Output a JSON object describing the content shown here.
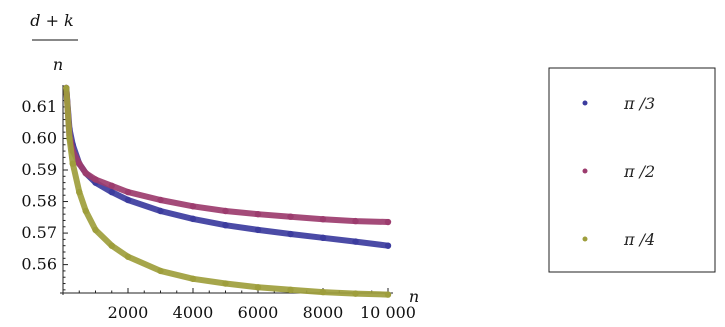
{
  "chart_data": {
    "type": "scatter",
    "ylabel": {
      "numerator": "d + k",
      "denominator": "n"
    },
    "xlabel": "n",
    "xlim": [
      0,
      10000
    ],
    "ylim": [
      0.551,
      0.616
    ],
    "x_ticks": [
      2000,
      4000,
      6000,
      8000,
      10000
    ],
    "x_tick_labels": [
      "2000",
      "4000",
      "6000",
      "8000",
      "10 000"
    ],
    "y_ticks": [
      0.56,
      0.57,
      0.58,
      0.59,
      0.6,
      0.61
    ],
    "y_tick_labels": [
      "0.56",
      "0.57",
      "0.58",
      "0.59",
      "0.60",
      "0.61"
    ],
    "grid": false,
    "legend": "right",
    "series": [
      {
        "name": "π /3",
        "color": "#3c3c9e",
        "points": [
          [
            100,
            0.616
          ],
          [
            200,
            0.603
          ],
          [
            300,
            0.598
          ],
          [
            500,
            0.592
          ],
          [
            700,
            0.589
          ],
          [
            1000,
            0.586
          ],
          [
            1500,
            0.583
          ],
          [
            2000,
            0.5805
          ],
          [
            3000,
            0.577
          ],
          [
            4000,
            0.5745
          ],
          [
            5000,
            0.5725
          ],
          [
            6000,
            0.571
          ],
          [
            7000,
            0.5697
          ],
          [
            8000,
            0.5685
          ],
          [
            9000,
            0.5673
          ],
          [
            10000,
            0.566
          ]
        ]
      },
      {
        "name": "π /2",
        "color": "#9c3c6e",
        "points": [
          [
            100,
            0.616
          ],
          [
            200,
            0.601
          ],
          [
            300,
            0.596
          ],
          [
            500,
            0.592
          ],
          [
            700,
            0.589
          ],
          [
            1000,
            0.587
          ],
          [
            1500,
            0.585
          ],
          [
            2000,
            0.583
          ],
          [
            3000,
            0.5805
          ],
          [
            4000,
            0.5785
          ],
          [
            5000,
            0.577
          ],
          [
            6000,
            0.576
          ],
          [
            7000,
            0.5752
          ],
          [
            8000,
            0.5744
          ],
          [
            9000,
            0.5738
          ],
          [
            10000,
            0.5735
          ]
        ]
      },
      {
        "name": "π /4",
        "color": "#9e9e3c",
        "points": [
          [
            100,
            0.616
          ],
          [
            200,
            0.6
          ],
          [
            300,
            0.592
          ],
          [
            500,
            0.583
          ],
          [
            700,
            0.577
          ],
          [
            1000,
            0.571
          ],
          [
            1500,
            0.566
          ],
          [
            2000,
            0.5625
          ],
          [
            3000,
            0.558
          ],
          [
            4000,
            0.5555
          ],
          [
            5000,
            0.554
          ],
          [
            6000,
            0.5528
          ],
          [
            7000,
            0.552
          ],
          [
            8000,
            0.5513
          ],
          [
            9000,
            0.5508
          ],
          [
            10000,
            0.5505
          ]
        ]
      }
    ]
  }
}
